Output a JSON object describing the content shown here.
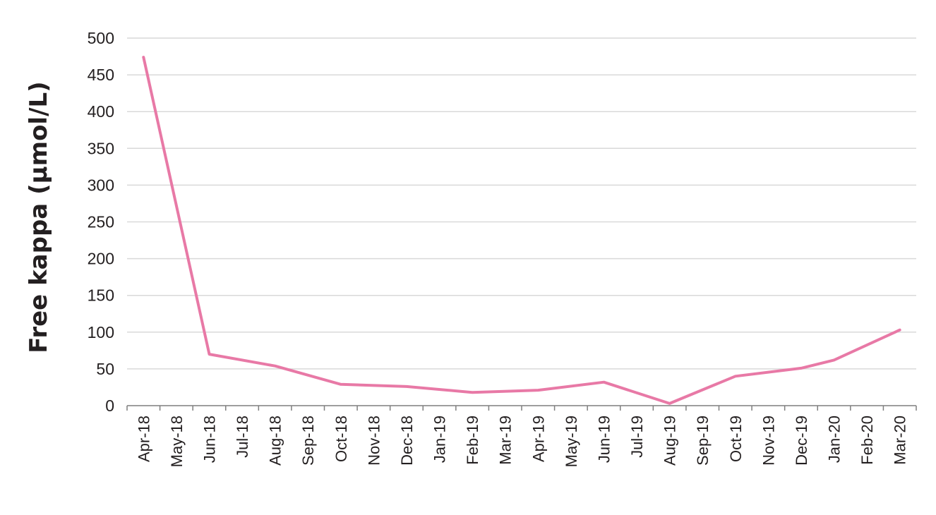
{
  "chart_data": {
    "type": "line",
    "title": "",
    "xlabel": "",
    "ylabel": "Free kappa (µmol/L)",
    "ylim": [
      0,
      500
    ],
    "yticks": [
      "0",
      "50",
      "100",
      "150",
      "200",
      "250",
      "300",
      "350",
      "400",
      "450",
      "500"
    ],
    "grid": true,
    "legend": "none",
    "categories": [
      "Apr-18",
      "May-18",
      "Jun-18",
      "Jul-18",
      "Aug-18",
      "Sep-18",
      "Oct-18",
      "Nov-18",
      "Dec-18",
      "Jan-19",
      "Feb-19",
      "Mar-19",
      "Apr-19",
      "May-19",
      "Jun-19",
      "Jul-19",
      "Aug-19",
      "Sep-19",
      "Oct-19",
      "Nov-19",
      "Dec-19",
      "Jan-20",
      "Feb-20",
      "Mar-20"
    ],
    "points": [
      {
        "x": 0,
        "y": 474
      },
      {
        "x": 2,
        "y": 70
      },
      {
        "x": 4,
        "y": 54
      },
      {
        "x": 6,
        "y": 29
      },
      {
        "x": 8,
        "y": 26
      },
      {
        "x": 10,
        "y": 18
      },
      {
        "x": 12,
        "y": 21
      },
      {
        "x": 14,
        "y": 32
      },
      {
        "x": 16,
        "y": 3
      },
      {
        "x": 18,
        "y": 40
      },
      {
        "x": 20,
        "y": 51
      },
      {
        "x": 21,
        "y": 62
      },
      {
        "x": 23,
        "y": 103
      }
    ],
    "line_color": "#e879a6"
  }
}
